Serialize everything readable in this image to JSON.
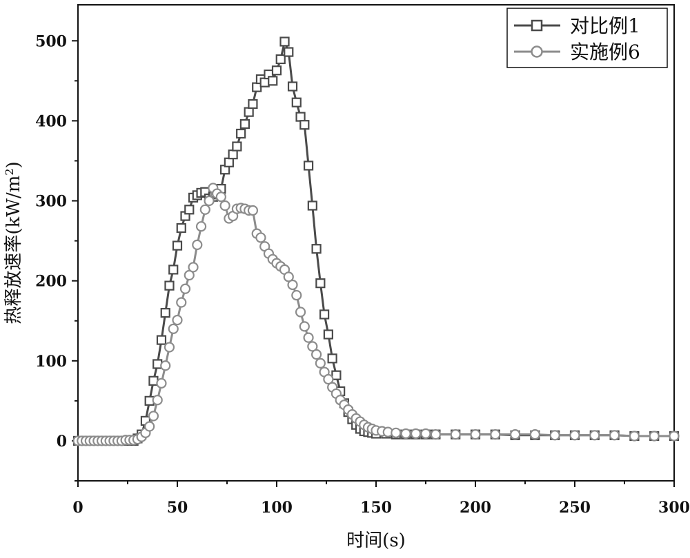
{
  "chart_data": {
    "type": "line",
    "title": "",
    "xlabel": "时间(s)",
    "ylabel_main": "热释放速率(kW/m",
    "ylabel_sup": "2",
    "ylabel_close": ")",
    "xlim": [
      0,
      300
    ],
    "ylim": [
      -50,
      545
    ],
    "xticks": [
      0,
      50,
      100,
      150,
      200,
      250,
      300
    ],
    "yticks": [
      0,
      100,
      200,
      300,
      400,
      500
    ],
    "grid": false,
    "legend_position": "top-right",
    "series": [
      {
        "name": "对比例1",
        "marker": "square",
        "color": "#4a4a4a",
        "points": [
          [
            0,
            0
          ],
          [
            2,
            0
          ],
          [
            4,
            0
          ],
          [
            6,
            0
          ],
          [
            8,
            0
          ],
          [
            10,
            0
          ],
          [
            12,
            0
          ],
          [
            14,
            0
          ],
          [
            16,
            0
          ],
          [
            18,
            0
          ],
          [
            20,
            0
          ],
          [
            22,
            0
          ],
          [
            24,
            0
          ],
          [
            26,
            0
          ],
          [
            28,
            0
          ],
          [
            30,
            3
          ],
          [
            32,
            8
          ],
          [
            34,
            25
          ],
          [
            36,
            50
          ],
          [
            38,
            75
          ],
          [
            40,
            96
          ],
          [
            42,
            126
          ],
          [
            44,
            160
          ],
          [
            46,
            194
          ],
          [
            48,
            214
          ],
          [
            50,
            244
          ],
          [
            52,
            266
          ],
          [
            54,
            281
          ],
          [
            56,
            289
          ],
          [
            58,
            304
          ],
          [
            60,
            307
          ],
          [
            62,
            310
          ],
          [
            64,
            311
          ],
          [
            66,
            303
          ],
          [
            68,
            305
          ],
          [
            70,
            308
          ],
          [
            72,
            315
          ],
          [
            74,
            339
          ],
          [
            76,
            348
          ],
          [
            78,
            358
          ],
          [
            80,
            368
          ],
          [
            82,
            384
          ],
          [
            84,
            396
          ],
          [
            86,
            411
          ],
          [
            88,
            421
          ],
          [
            90,
            442
          ],
          [
            92,
            452
          ],
          [
            94,
            448
          ],
          [
            96,
            458
          ],
          [
            98,
            450
          ],
          [
            100,
            463
          ],
          [
            102,
            477
          ],
          [
            104,
            499
          ],
          [
            106,
            486
          ],
          [
            108,
            443
          ],
          [
            110,
            423
          ],
          [
            112,
            405
          ],
          [
            114,
            395
          ],
          [
            116,
            344
          ],
          [
            118,
            294
          ],
          [
            120,
            240
          ],
          [
            122,
            197
          ],
          [
            124,
            158
          ],
          [
            126,
            133
          ],
          [
            128,
            103
          ],
          [
            130,
            82
          ],
          [
            132,
            62
          ],
          [
            134,
            47
          ],
          [
            136,
            36
          ],
          [
            138,
            27
          ],
          [
            140,
            20
          ],
          [
            142,
            15
          ],
          [
            144,
            12
          ],
          [
            146,
            11
          ],
          [
            148,
            10
          ],
          [
            150,
            9
          ],
          [
            155,
            9
          ],
          [
            160,
            8
          ],
          [
            165,
            8
          ],
          [
            170,
            8
          ],
          [
            175,
            8
          ],
          [
            180,
            8
          ],
          [
            190,
            8
          ],
          [
            200,
            8
          ],
          [
            210,
            8
          ],
          [
            220,
            7
          ],
          [
            230,
            7
          ],
          [
            240,
            7
          ],
          [
            250,
            7
          ],
          [
            260,
            7
          ],
          [
            270,
            7
          ],
          [
            280,
            6
          ],
          [
            290,
            6
          ],
          [
            300,
            6
          ]
        ]
      },
      {
        "name": "实施例6",
        "marker": "circle",
        "color": "#8c8c8c",
        "points": [
          [
            0,
            0
          ],
          [
            2,
            0
          ],
          [
            4,
            0
          ],
          [
            6,
            0
          ],
          [
            8,
            0
          ],
          [
            10,
            0
          ],
          [
            12,
            0
          ],
          [
            14,
            0
          ],
          [
            16,
            0
          ],
          [
            18,
            0
          ],
          [
            20,
            0
          ],
          [
            22,
            0
          ],
          [
            24,
            1
          ],
          [
            26,
            1
          ],
          [
            28,
            1
          ],
          [
            30,
            2
          ],
          [
            32,
            5
          ],
          [
            34,
            10
          ],
          [
            36,
            18
          ],
          [
            38,
            31
          ],
          [
            40,
            51
          ],
          [
            42,
            72
          ],
          [
            44,
            94
          ],
          [
            46,
            117
          ],
          [
            48,
            140
          ],
          [
            50,
            151
          ],
          [
            52,
            173
          ],
          [
            54,
            190
          ],
          [
            56,
            207
          ],
          [
            58,
            217
          ],
          [
            60,
            245
          ],
          [
            62,
            268
          ],
          [
            64,
            289
          ],
          [
            66,
            300
          ],
          [
            68,
            316
          ],
          [
            70,
            309
          ],
          [
            72,
            305
          ],
          [
            74,
            294
          ],
          [
            76,
            278
          ],
          [
            78,
            281
          ],
          [
            80,
            290
          ],
          [
            82,
            291
          ],
          [
            84,
            290
          ],
          [
            86,
            288
          ],
          [
            88,
            288
          ],
          [
            90,
            259
          ],
          [
            92,
            254
          ],
          [
            94,
            243
          ],
          [
            96,
            234
          ],
          [
            98,
            227
          ],
          [
            100,
            222
          ],
          [
            102,
            218
          ],
          [
            104,
            214
          ],
          [
            106,
            205
          ],
          [
            108,
            195
          ],
          [
            110,
            182
          ],
          [
            112,
            161
          ],
          [
            114,
            143
          ],
          [
            116,
            129
          ],
          [
            118,
            118
          ],
          [
            120,
            108
          ],
          [
            122,
            97
          ],
          [
            124,
            86
          ],
          [
            126,
            77
          ],
          [
            128,
            67
          ],
          [
            130,
            59
          ],
          [
            132,
            51
          ],
          [
            134,
            45
          ],
          [
            136,
            39
          ],
          [
            138,
            33
          ],
          [
            140,
            28
          ],
          [
            142,
            24
          ],
          [
            144,
            20
          ],
          [
            146,
            17
          ],
          [
            148,
            15
          ],
          [
            150,
            13
          ],
          [
            153,
            12
          ],
          [
            156,
            11
          ],
          [
            160,
            10
          ],
          [
            165,
            9
          ],
          [
            170,
            9
          ],
          [
            175,
            9
          ],
          [
            180,
            8
          ],
          [
            190,
            8
          ],
          [
            200,
            8
          ],
          [
            210,
            8
          ],
          [
            220,
            8
          ],
          [
            230,
            8
          ],
          [
            240,
            7
          ],
          [
            250,
            7
          ],
          [
            260,
            7
          ],
          [
            270,
            7
          ],
          [
            280,
            6
          ],
          [
            290,
            6
          ],
          [
            300,
            6
          ]
        ]
      }
    ]
  }
}
